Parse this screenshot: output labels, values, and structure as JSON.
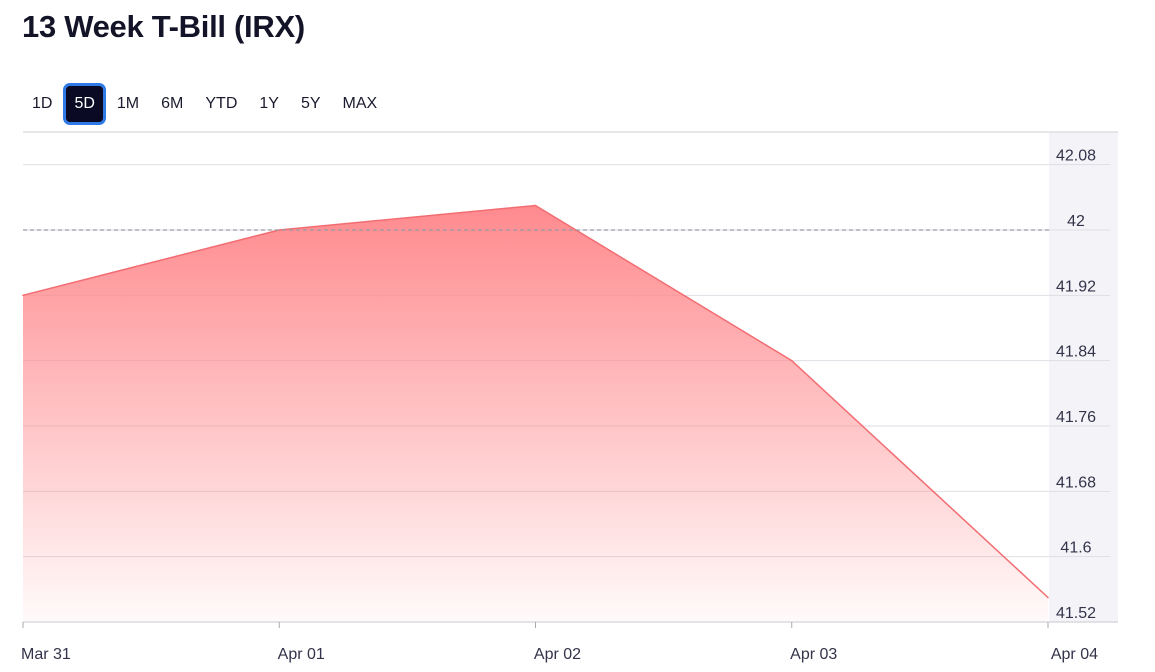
{
  "page": {
    "title": "13 Week T-Bill (IRX)"
  },
  "range_tabs": {
    "items": [
      {
        "key": "1d",
        "label": "1D",
        "active": false
      },
      {
        "key": "5d",
        "label": "5D",
        "active": true
      },
      {
        "key": "1m",
        "label": "1M",
        "active": false
      },
      {
        "key": "6m",
        "label": "6M",
        "active": false
      },
      {
        "key": "ytd",
        "label": "YTD",
        "active": false
      },
      {
        "key": "1y",
        "label": "1Y",
        "active": false
      },
      {
        "key": "5y",
        "label": "5Y",
        "active": false
      },
      {
        "key": "max",
        "label": "MAX",
        "active": false
      }
    ]
  },
  "colors": {
    "line": "#f26d72",
    "fill_top": "#ff8a8e",
    "grid": "#dedee4",
    "ref_line": "#9a9aa3",
    "axis_panel": "#f4f4f8"
  },
  "chart_data": {
    "type": "area",
    "title": "",
    "xlabel": "",
    "ylabel": "",
    "x": [
      "Mar 31",
      "Apr 01",
      "Apr 02",
      "Apr 03",
      "Apr 04"
    ],
    "values": [
      41.92,
      42.0,
      42.03,
      41.84,
      41.55
    ],
    "ylim": [
      41.52,
      42.12
    ],
    "y_ticks": [
      42.08,
      42,
      41.92,
      41.84,
      41.76,
      41.68,
      41.6,
      41.52
    ],
    "y_tick_labels": [
      "42.08",
      "42",
      "41.92",
      "41.84",
      "41.76",
      "41.68",
      "41.6",
      "41.52"
    ],
    "reference_line": 42.0,
    "grid": true,
    "y_axis_position": "right"
  }
}
